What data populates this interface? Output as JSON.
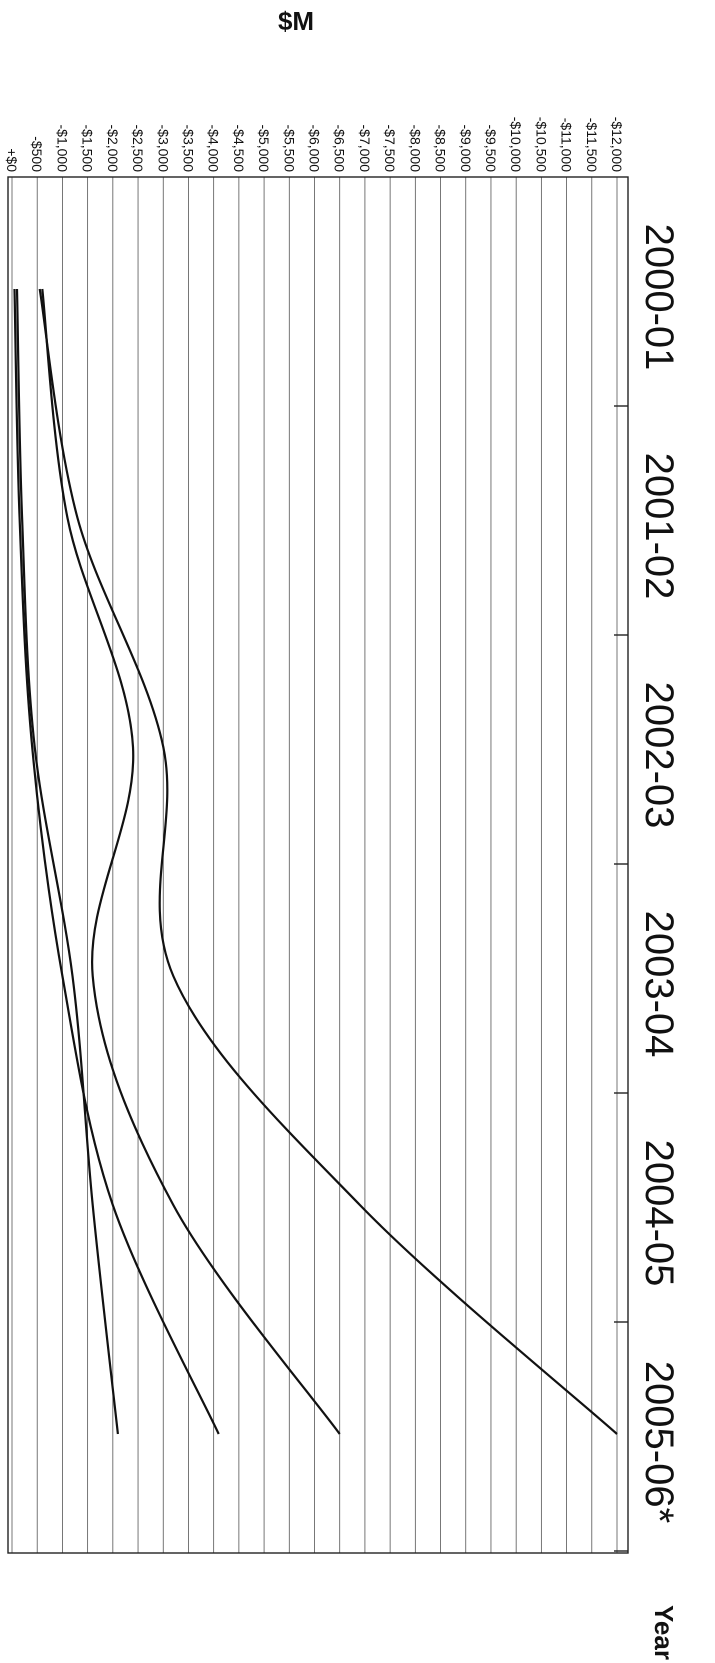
{
  "chart_data": {
    "type": "line",
    "orientation": "rotated 90° clockwise (years run top to bottom, values increase leftward)",
    "ylabel": "$M",
    "xlabel": "Year",
    "categories": [
      "2000-01",
      "2001-02",
      "2002-03",
      "2003-04",
      "2004-05",
      "2005-06*"
    ],
    "y_ticks": [
      "+$0",
      "-$500",
      "-$1,000",
      "-$1,500",
      "-$2,000",
      "-$2,500",
      "-$3,000",
      "-$3,500",
      "-$4,000",
      "-$4,500",
      "-$5,000",
      "-$5,500",
      "-$6,000",
      "-$6,500",
      "-$7,000",
      "-$7,500",
      "-$8,000",
      "-$8,500",
      "-$9,000",
      "-$9,500",
      "-$10,000",
      "-$10,500",
      "-$11,000",
      "-$11,500",
      "-$12,000"
    ],
    "ylim": [
      0,
      -12000
    ],
    "grid": true,
    "series": [
      {
        "values": [
          -550,
          -1300,
          -3000,
          -3200,
          -6900,
          -12000
        ]
      },
      {
        "values": [
          -600,
          -1100,
          -2400,
          -1600,
          -3200,
          -6500
        ]
      },
      {
        "values": [
          -50,
          -150,
          -400,
          -1000,
          -2000,
          -4100
        ]
      },
      {
        "values": [
          -100,
          -200,
          -450,
          -1200,
          -1600,
          -2100
        ]
      }
    ]
  }
}
